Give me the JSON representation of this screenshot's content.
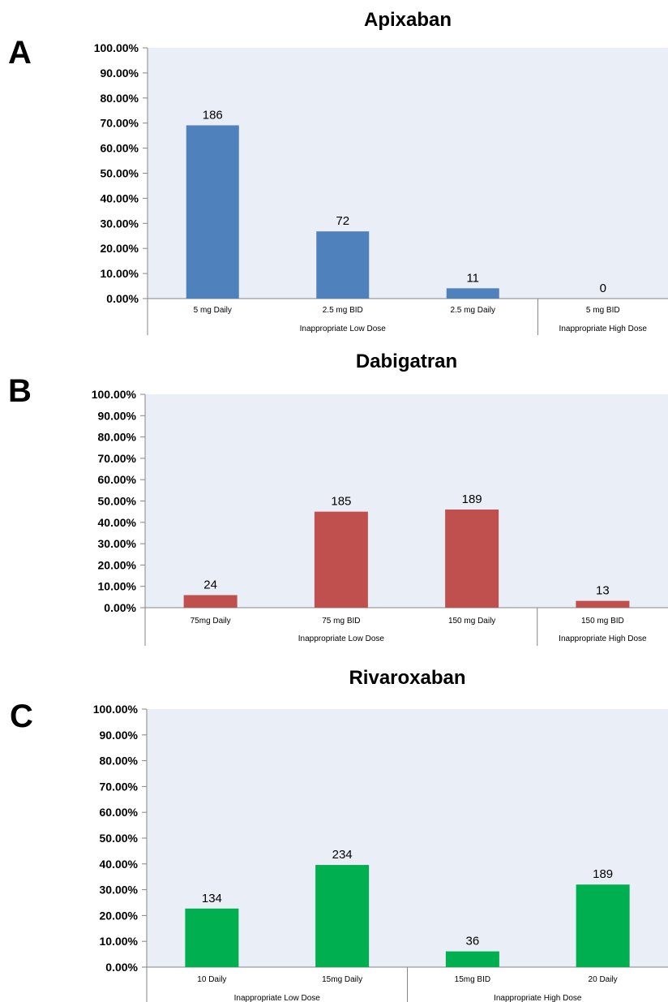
{
  "chart_data": [
    {
      "type": "bar",
      "panel": "A",
      "title": "Apixaban",
      "categories": [
        "5 mg Daily",
        "2.5 mg BID",
        "2.5 mg Daily",
        "5 mg BID"
      ],
      "values": [
        69.1,
        26.8,
        4.1,
        0
      ],
      "data_labels": [
        "186",
        "72",
        "11",
        "0"
      ],
      "groups": [
        {
          "label": "Inappropriate Low Dose",
          "count": 3
        },
        {
          "label": "Inappropriate High Dose",
          "count": 1
        }
      ],
      "ylim": [
        0,
        100
      ],
      "yticks": [
        "0.00%",
        "10.00%",
        "20.00%",
        "30.00%",
        "40.00%",
        "50.00%",
        "60.00%",
        "70.00%",
        "80.00%",
        "90.00%",
        "100.00%"
      ],
      "color": "#4f81bd",
      "plot_background": "#eaeef7",
      "grid": false,
      "xlabel": "",
      "ylabel": ""
    },
    {
      "type": "bar",
      "panel": "B",
      "title": "Dabigatran",
      "categories": [
        "75mg Daily",
        "75 mg BID",
        "150 mg Daily",
        "150 mg BID"
      ],
      "values": [
        5.9,
        45.0,
        46.0,
        3.2
      ],
      "data_labels": [
        "24",
        "185",
        "189",
        "13"
      ],
      "groups": [
        {
          "label": "Inappropriate Low Dose",
          "count": 3
        },
        {
          "label": "Inappropriate High Dose",
          "count": 1
        }
      ],
      "ylim": [
        0,
        100
      ],
      "yticks": [
        "0.00%",
        "10.00%",
        "20.00%",
        "30.00%",
        "40.00%",
        "50.00%",
        "60.00%",
        "70.00%",
        "80.00%",
        "90.00%",
        "100.00%"
      ],
      "color": "#c0504d",
      "plot_background": "#eaeef7",
      "grid": false,
      "xlabel": "",
      "ylabel": ""
    },
    {
      "type": "bar",
      "panel": "C",
      "title": "Rivaroxaban",
      "categories": [
        "10 Daily",
        "15mg Daily",
        "15mg BID",
        "20 Daily"
      ],
      "values": [
        22.7,
        39.6,
        6.1,
        32.0
      ],
      "data_labels": [
        "134",
        "234",
        "36",
        "189"
      ],
      "groups": [
        {
          "label": "Inappropriate Low Dose",
          "count": 2
        },
        {
          "label": "Inappropriate High Dose",
          "count": 2
        }
      ],
      "ylim": [
        0,
        100
      ],
      "yticks": [
        "0.00%",
        "10.00%",
        "20.00%",
        "30.00%",
        "40.00%",
        "50.00%",
        "60.00%",
        "70.00%",
        "80.00%",
        "90.00%",
        "100.00%"
      ],
      "color": "#00b050",
      "plot_background": "#eaeef7",
      "grid": false,
      "xlabel": "",
      "ylabel": ""
    }
  ]
}
